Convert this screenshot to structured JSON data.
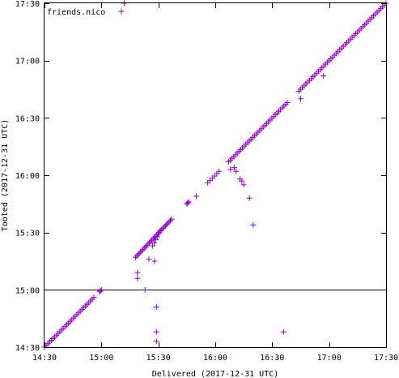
{
  "chart_data": {
    "type": "scatter",
    "title": "",
    "xlabel": "Delivered (2017-12-31 UTC)",
    "ylabel": "Tooted (2017-12-31 UTC)",
    "xlim": [
      "14:30",
      "17:30"
    ],
    "ylim": [
      "14:30",
      "17:30"
    ],
    "x_ticks": [
      "14:30",
      "15:00",
      "15:30",
      "16:00",
      "16:30",
      "17:00",
      "17:30"
    ],
    "y_ticks": [
      "14:30",
      "15:00",
      "15:30",
      "16:00",
      "16:30",
      "17:00",
      "17:30"
    ],
    "reference_line_y": "15:00",
    "grid": false,
    "legend_position": "top-left",
    "marker": "+",
    "series": [
      {
        "name": "friends.nico",
        "color": "#9400d3",
        "segments": [
          {
            "x0": "14:30",
            "y0": "14:30",
            "x1": "14:56",
            "y1": "14:56",
            "n": 30
          },
          {
            "x0": "14:59",
            "y0": "14:59",
            "x1": "15:00",
            "y1": "15:00",
            "n": 3
          },
          {
            "x0": "15:18",
            "y0": "15:17",
            "x1": "15:37",
            "y1": "15:37",
            "n": 30
          },
          {
            "x0": "15:27",
            "y0": "15:23",
            "x1": "15:31",
            "y1": "15:31",
            "n": 6
          },
          {
            "x0": "15:45",
            "y0": "15:45",
            "x1": "15:46",
            "y1": "15:46",
            "n": 3
          },
          {
            "x0": "15:56",
            "y0": "15:56",
            "x1": "16:02",
            "y1": "16:02",
            "n": 6
          },
          {
            "x0": "16:07",
            "y0": "16:07",
            "x1": "16:38",
            "y1": "16:38",
            "n": 35
          },
          {
            "x0": "16:44",
            "y0": "16:44",
            "x1": "17:30",
            "y1": "17:30",
            "n": 50
          }
        ],
        "points": [
          {
            "x": "15:12",
            "y": "17:30"
          },
          {
            "x": "15:19",
            "y": "15:09"
          },
          {
            "x": "15:19",
            "y": "15:06"
          },
          {
            "x": "15:23",
            "y": "15:00"
          },
          {
            "x": "15:25",
            "y": "15:16"
          },
          {
            "x": "15:28",
            "y": "15:15"
          },
          {
            "x": "15:29",
            "y": "14:51"
          },
          {
            "x": "15:29",
            "y": "14:38"
          },
          {
            "x": "15:29",
            "y": "14:33"
          },
          {
            "x": "15:50",
            "y": "15:49"
          },
          {
            "x": "16:08",
            "y": "16:03"
          },
          {
            "x": "16:10",
            "y": "16:04"
          },
          {
            "x": "16:11",
            "y": "16:02"
          },
          {
            "x": "16:13",
            "y": "15:58"
          },
          {
            "x": "16:14",
            "y": "15:57"
          },
          {
            "x": "16:15",
            "y": "15:55"
          },
          {
            "x": "16:18",
            "y": "15:48"
          },
          {
            "x": "16:20",
            "y": "15:34"
          },
          {
            "x": "16:36",
            "y": "14:38"
          },
          {
            "x": "16:45",
            "y": "16:40"
          },
          {
            "x": "16:57",
            "y": "16:52"
          }
        ]
      }
    ]
  }
}
